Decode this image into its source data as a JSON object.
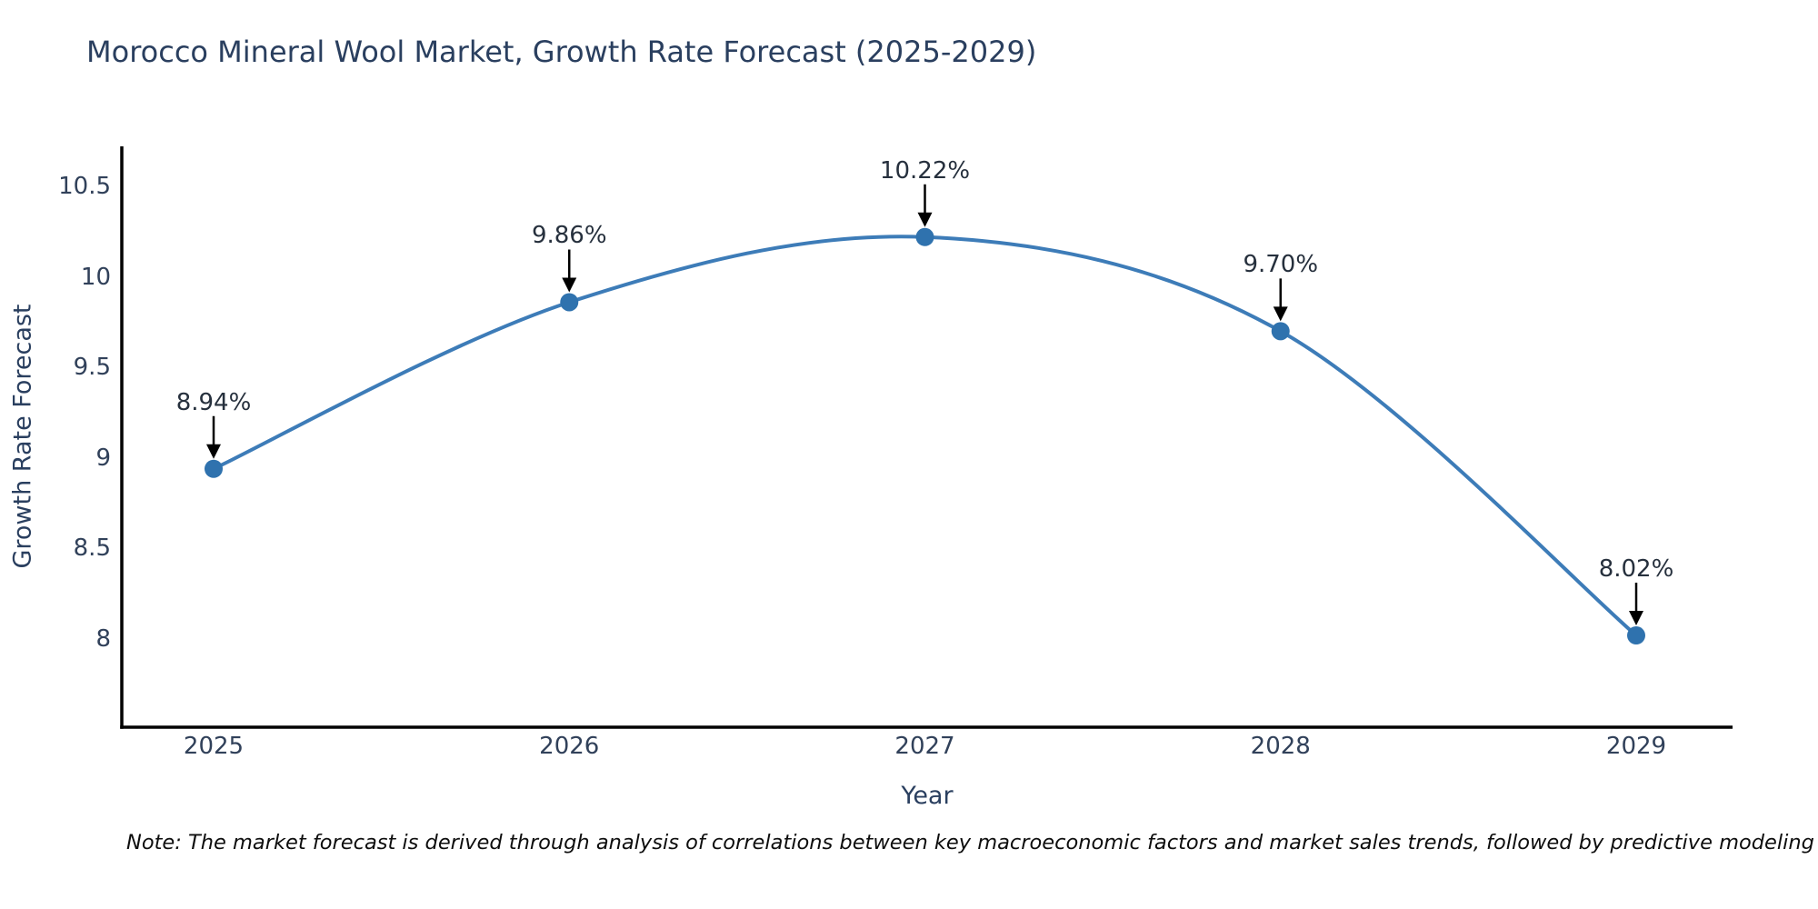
{
  "title": "Morocco Mineral Wool Market, Growth Rate Forecast (2025-2029)",
  "note": "Note: The market forecast is derived through analysis of correlations between key macroeconomic factors and market sales trends, followed by predictive modeling to project future sales",
  "chart_data": {
    "type": "line",
    "title": "Morocco Mineral Wool Market, Growth Rate Forecast (2025-2029)",
    "xlabel": "Year",
    "ylabel": "Growth Rate Forecast",
    "categories": [
      "2025",
      "2026",
      "2027",
      "2028",
      "2029"
    ],
    "values": [
      8.94,
      9.86,
      10.22,
      9.7,
      8.02
    ],
    "point_labels": [
      "8.94%",
      "9.86%",
      "10.22%",
      "9.70%",
      "8.02%"
    ],
    "yticks": [
      8,
      8.5,
      9,
      9.5,
      10,
      10.5
    ],
    "ytick_labels": [
      "8",
      "8.5",
      "9",
      "9.5",
      "10",
      "10.5"
    ],
    "ylim": [
      7.5,
      10.72
    ],
    "line_shape": "spline",
    "grid": false,
    "legend": false,
    "line_color": "#3d7cb8",
    "marker_color": "#2f72ae",
    "arrow_color": "#000000",
    "axis_color": "#000000",
    "text_color": "#2a3f5f"
  }
}
